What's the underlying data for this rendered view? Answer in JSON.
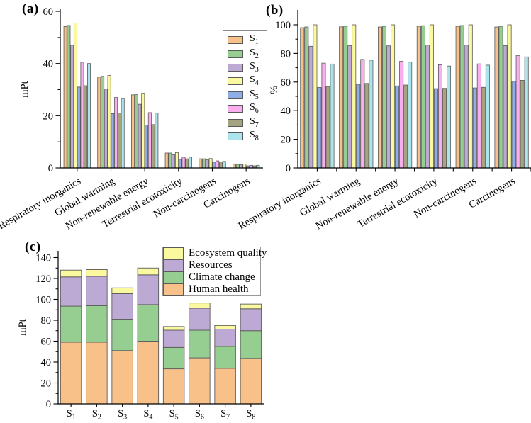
{
  "palette": {
    "bar_stroke": "#5a5a5a",
    "axis_color": "#000000",
    "legend_border": "#8a8a8a"
  },
  "chart_data": [
    {
      "id": "chart-a",
      "panel_label": "(a)",
      "type": "bar",
      "ylabel": "mPt",
      "ylim": [
        0,
        60
      ],
      "yticks": [
        0,
        20,
        40,
        60
      ],
      "minor_yticks": [
        10,
        30,
        50
      ],
      "grid": false,
      "legend_position": "right-inside",
      "categories": [
        "Respiratory inorganics",
        "Global warming",
        "Non-renewable energy",
        "Terrestrial ecotoxicity",
        "Non-carcinogens",
        "Carcinogens"
      ],
      "series": [
        {
          "name": "S1",
          "color": "#F7C189",
          "values": [
            54.2,
            34.8,
            28.0,
            5.7,
            3.5,
            1.4
          ]
        },
        {
          "name": "S2",
          "color": "#96CE92",
          "values": [
            54.6,
            35.1,
            28.2,
            5.7,
            3.5,
            1.4
          ]
        },
        {
          "name": "S3",
          "color": "#BCAAD4",
          "values": [
            47.0,
            30.2,
            24.4,
            5.1,
            3.1,
            1.2
          ]
        },
        {
          "name": "S4",
          "color": "#FBF99F",
          "values": [
            55.5,
            35.4,
            28.6,
            5.9,
            3.6,
            1.5
          ]
        },
        {
          "name": "S5",
          "color": "#8FAEE7",
          "values": [
            31.0,
            20.8,
            16.4,
            3.3,
            2.2,
            0.8
          ]
        },
        {
          "name": "S6",
          "color": "#F9AEEF",
          "values": [
            40.5,
            27.0,
            21.2,
            4.1,
            2.7,
            1.0
          ]
        },
        {
          "name": "S7",
          "color": "#A6A480",
          "values": [
            31.5,
            21.0,
            16.6,
            3.5,
            2.3,
            0.8
          ]
        },
        {
          "name": "S8",
          "color": "#ABE4EA",
          "values": [
            40.0,
            26.6,
            21.0,
            4.1,
            2.5,
            1.0
          ]
        }
      ]
    },
    {
      "id": "chart-b",
      "panel_label": "(b)",
      "type": "bar",
      "ylabel": "%",
      "ylim": [
        0,
        100
      ],
      "yticks": [
        0,
        20,
        40,
        60,
        80,
        100
      ],
      "minor_yticks": [
        10,
        30,
        50,
        70,
        90
      ],
      "grid": false,
      "legend_position": "none",
      "categories": [
        "Respiratory inorganics",
        "Global warming",
        "Non-renewable energy",
        "Terrestrial ecotoxicity",
        "Non-carcinogens",
        "Carcinogens"
      ],
      "series": [
        {
          "name": "S1",
          "color": "#F7C189",
          "values": [
            98.0,
            98.6,
            98.5,
            99.0,
            99.0,
            98.5
          ]
        },
        {
          "name": "S2",
          "color": "#96CE92",
          "values": [
            98.5,
            99.0,
            99.0,
            99.4,
            99.5,
            99.0
          ]
        },
        {
          "name": "S3",
          "color": "#BCAAD4",
          "values": [
            85.0,
            85.4,
            85.3,
            85.8,
            85.8,
            85.4
          ]
        },
        {
          "name": "S4",
          "color": "#FBF99F",
          "values": [
            100,
            100,
            100,
            100,
            100,
            100
          ]
        },
        {
          "name": "S5",
          "color": "#8FAEE7",
          "values": [
            56.2,
            58.4,
            57.3,
            55.4,
            55.9,
            60.5
          ]
        },
        {
          "name": "S6",
          "color": "#F9AEEF",
          "values": [
            73.2,
            75.8,
            74.5,
            72.1,
            72.7,
            78.6
          ]
        },
        {
          "name": "S7",
          "color": "#A6A480",
          "values": [
            56.9,
            59.0,
            57.9,
            55.6,
            56.3,
            61.2
          ]
        },
        {
          "name": "S8",
          "color": "#ABE4EA",
          "values": [
            72.6,
            75.3,
            73.9,
            71.2,
            71.8,
            77.6
          ]
        }
      ]
    },
    {
      "id": "chart-c",
      "panel_label": "(c)",
      "type": "stacked-bar",
      "ylabel": "mPt",
      "ylim": [
        0,
        140
      ],
      "yticks": [
        0,
        20,
        40,
        60,
        80,
        100,
        120,
        140
      ],
      "minor_yticks": [
        10,
        30,
        50,
        70,
        90,
        110,
        130
      ],
      "grid": false,
      "legend_position": "top-inside",
      "categories": [
        "S1",
        "S2",
        "S3",
        "S4",
        "S5",
        "S6",
        "S7",
        "S8"
      ],
      "series": [
        {
          "name": "Human health",
          "color": "#F7C189",
          "values": [
            59.0,
            59.0,
            51.0,
            60.0,
            33.5,
            44.0,
            34.0,
            43.5
          ]
        },
        {
          "name": "Climate change",
          "color": "#96CE92",
          "values": [
            34.5,
            35.0,
            30.0,
            35.0,
            20.5,
            26.5,
            21.0,
            26.5
          ]
        },
        {
          "name": "Resources",
          "color": "#BCAAD4",
          "values": [
            28.0,
            28.0,
            24.5,
            28.5,
            16.5,
            21.0,
            16.5,
            21.0
          ]
        },
        {
          "name": "Ecosystem quality",
          "color": "#FBF99F",
          "values": [
            6.5,
            6.5,
            5.5,
            6.5,
            3.5,
            5.0,
            3.5,
            4.5
          ]
        }
      ],
      "legend": [
        "Ecosystem quality",
        "Resources",
        "Climate change",
        "Human health"
      ]
    }
  ]
}
